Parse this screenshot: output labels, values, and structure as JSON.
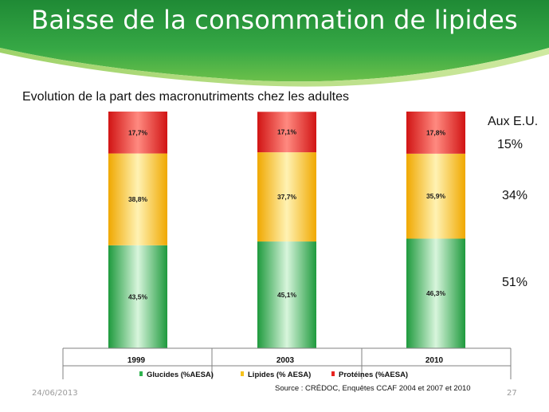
{
  "slide": {
    "title": "Baisse de la consommation de lipides",
    "date": "24/06/2013",
    "page": "27"
  },
  "notes": {
    "heading": "Aux E.U.",
    "proteins": "15%",
    "lipids": "34%",
    "carbs": "51%"
  },
  "source": "Source : CRÉDOC, Enquêtes CCAF 2004 et 2007 et 2010",
  "colors": {
    "glucides": "#2fb34f",
    "lipides": "#f6c21c",
    "proteines": "#e8231f",
    "header_green": "#2e9b3e"
  },
  "chart_data": {
    "type": "bar",
    "stacked": true,
    "title": "Evolution de la part des macronutriments chez les adultes",
    "categories": [
      "1999",
      "2003",
      "2010"
    ],
    "series": [
      {
        "name": "Glucides (%AESA)",
        "values": [
          43.5,
          45.1,
          46.3
        ],
        "labels": [
          "43,5%",
          "45,1%",
          "46,3%"
        ],
        "color": "#2fb34f"
      },
      {
        "name": "Lipides (% AESA)",
        "values": [
          38.8,
          37.7,
          35.9
        ],
        "labels": [
          "38,8%",
          "37,7%",
          "35,9%"
        ],
        "color": "#f6c21c"
      },
      {
        "name": "Protéines (%AESA)",
        "values": [
          17.7,
          17.1,
          17.8
        ],
        "labels": [
          "17,7%",
          "17,1%",
          "17,8%"
        ],
        "color": "#e8231f"
      }
    ],
    "legend_position": "bottom"
  }
}
